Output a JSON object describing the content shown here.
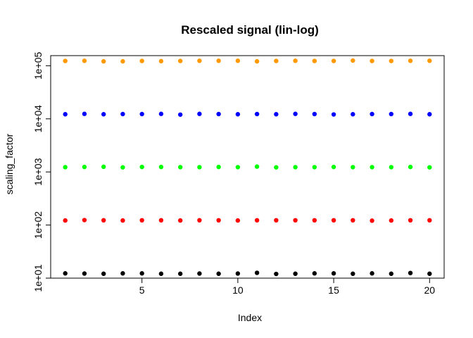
{
  "chart_data": {
    "type": "scatter",
    "title": "Rescaled signal (lin-log)",
    "xlabel": "Index",
    "ylabel": "scaling_factor",
    "x": [
      1,
      2,
      3,
      4,
      5,
      6,
      7,
      8,
      9,
      10,
      11,
      12,
      13,
      14,
      15,
      16,
      17,
      18,
      19,
      20
    ],
    "xlim": [
      0.24,
      20.76
    ],
    "ylim": [
      10,
      155000
    ],
    "y_scale": "log",
    "x_ticks": [
      5,
      10,
      15,
      20
    ],
    "x_tick_labels": [
      "5",
      "10",
      "15",
      "20"
    ],
    "y_ticks": [
      10,
      100,
      1000,
      10000,
      100000
    ],
    "y_tick_labels": [
      "1e+01",
      "1e+02",
      "1e+03",
      "1e+04",
      "1e+05"
    ],
    "grid": false,
    "series": [
      {
        "color": "#000000",
        "values": [
          12.3,
          12.2,
          12.1,
          12.3,
          12.3,
          12.1,
          12.1,
          12.2,
          12.1,
          12.2,
          12.6,
          12.0,
          12.1,
          12.3,
          12.3,
          12.1,
          12.3,
          12.1,
          12.5,
          12.1
        ]
      },
      {
        "color": "#ff0000",
        "values": [
          122,
          124,
          123,
          122,
          123,
          123,
          122,
          123,
          123,
          122,
          123,
          123,
          123,
          123,
          123,
          123,
          121,
          122,
          123,
          123
        ]
      },
      {
        "color": "#00ff00",
        "values": [
          1230,
          1240,
          1250,
          1220,
          1240,
          1240,
          1230,
          1230,
          1240,
          1230,
          1260,
          1220,
          1230,
          1230,
          1240,
          1230,
          1230,
          1230,
          1240,
          1220
        ]
      },
      {
        "color": "#0000ff",
        "values": [
          12200,
          12400,
          12200,
          12300,
          12300,
          12400,
          12000,
          12400,
          12300,
          12200,
          12300,
          12200,
          12400,
          12300,
          12100,
          12200,
          12300,
          12300,
          12400,
          12200
        ]
      },
      {
        "color": "#ff9900",
        "values": [
          123000,
          124000,
          121000,
          121000,
          123000,
          122000,
          123000,
          124000,
          124000,
          124000,
          121000,
          123000,
          124000,
          123000,
          123000,
          125000,
          123000,
          123000,
          124000,
          124000
        ]
      }
    ]
  }
}
